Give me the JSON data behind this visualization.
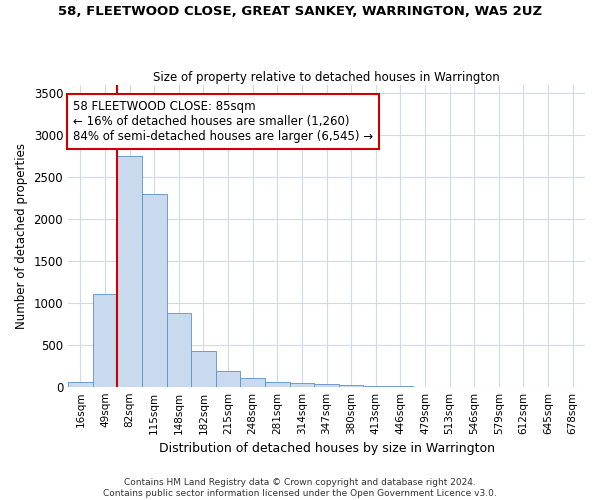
{
  "title": "58, FLEETWOOD CLOSE, GREAT SANKEY, WARRINGTON, WA5 2UZ",
  "subtitle": "Size of property relative to detached houses in Warrington",
  "xlabel": "Distribution of detached houses by size in Warrington",
  "ylabel": "Number of detached properties",
  "bin_labels": [
    "16sqm",
    "49sqm",
    "82sqm",
    "115sqm",
    "148sqm",
    "182sqm",
    "215sqm",
    "248sqm",
    "281sqm",
    "314sqm",
    "347sqm",
    "380sqm",
    "413sqm",
    "446sqm",
    "479sqm",
    "513sqm",
    "546sqm",
    "579sqm",
    "612sqm",
    "645sqm",
    "678sqm"
  ],
  "bar_values": [
    50,
    1100,
    2750,
    2300,
    880,
    430,
    190,
    100,
    55,
    40,
    30,
    20,
    10,
    5,
    0,
    0,
    0,
    0,
    0,
    0,
    0
  ],
  "bar_color": "#c9d9ee",
  "bar_edge_color": "#5b8fc9",
  "vline_color": "#cc0000",
  "vline_pos": 2.0,
  "annotation_text": "58 FLEETWOOD CLOSE: 85sqm\n← 16% of detached houses are smaller (1,260)\n84% of semi-detached houses are larger (6,545) →",
  "annotation_box_facecolor": "#ffffff",
  "annotation_box_edgecolor": "#cc0000",
  "ylim_max": 3600,
  "yticks": [
    0,
    500,
    1000,
    1500,
    2000,
    2500,
    3000,
    3500
  ],
  "grid_color": "#d0daea",
  "footer_line1": "Contains HM Land Registry data © Crown copyright and database right 2024.",
  "footer_line2": "Contains public sector information licensed under the Open Government Licence v3.0."
}
